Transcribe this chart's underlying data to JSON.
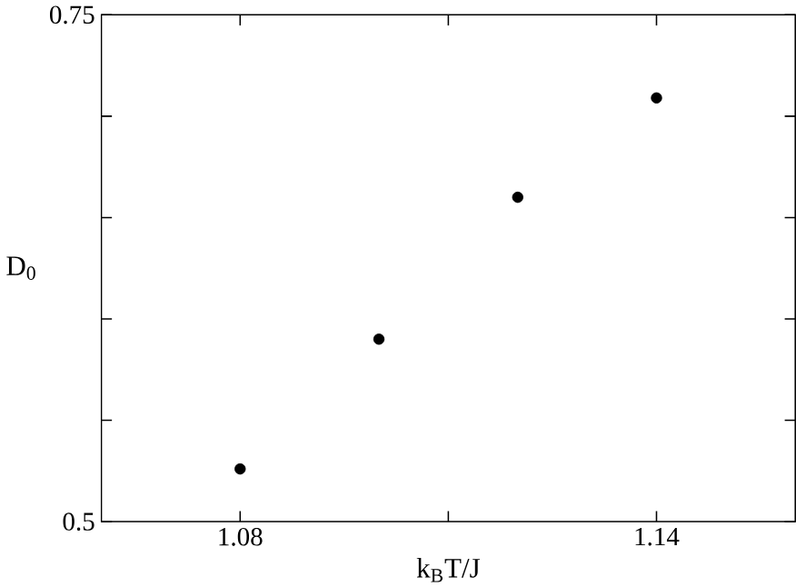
{
  "chart_data": {
    "type": "scatter",
    "xlabel": "k$_{B}$T/J",
    "ylabel": "D$_{0}$",
    "x": [
      1.08,
      1.1,
      1.12,
      1.14
    ],
    "values": [
      0.526,
      0.59,
      0.66,
      0.709
    ],
    "color": "#000000",
    "marker": "circle",
    "xlim": [
      1.06,
      1.16
    ],
    "xticks": [
      1.08,
      {
        "value": 1.11,
        "label": null
      },
      1.14
    ],
    "ylim": [
      0.5,
      0.75
    ],
    "yticks": [
      0.5,
      {
        "value": 0.55,
        "label": null
      },
      {
        "value": 0.6,
        "label": null
      },
      {
        "value": 0.65,
        "label": null
      },
      {
        "value": 0.7,
        "label": null
      },
      0.75
    ]
  }
}
